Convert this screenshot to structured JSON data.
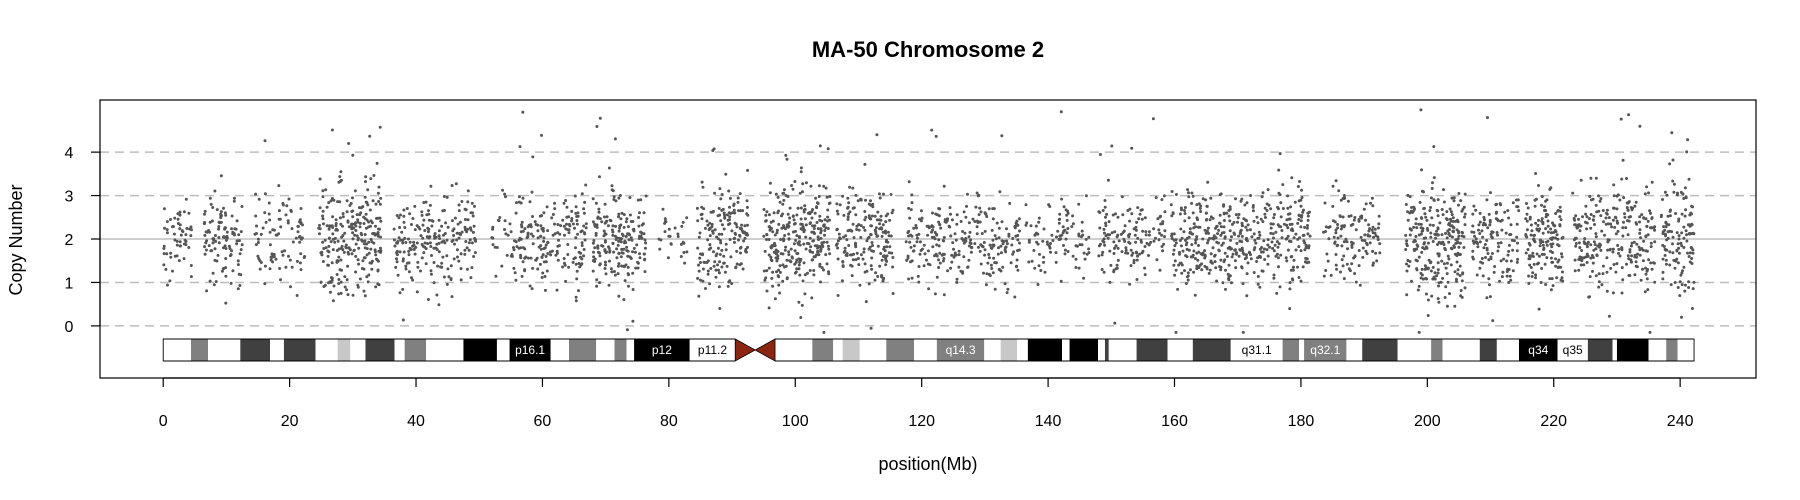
{
  "chart_data": {
    "type": "scatter",
    "title": "MA-50  Chromosome 2",
    "xlabel": "position(Mb)",
    "ylabel": "Copy Number",
    "xlim": [
      -10,
      252
    ],
    "ylim": [
      -1.2,
      5.2
    ],
    "xticks": [
      0,
      20,
      40,
      60,
      80,
      100,
      120,
      140,
      160,
      180,
      200,
      220,
      240
    ],
    "yticks": [
      0,
      1,
      2,
      3,
      4
    ],
    "reference_line": 2,
    "dashed_lines": [
      0,
      1,
      3,
      4
    ],
    "grid": false,
    "point_color": "#555555",
    "ideogram": {
      "start": 0,
      "end": 242.2,
      "centromere": [
        90.5,
        96.8
      ],
      "centromere_color": "#8b2510",
      "bands": [
        {
          "start": 0.0,
          "end": 4.4,
          "stain": "gneg"
        },
        {
          "start": 4.4,
          "end": 7.1,
          "stain": "gpos50"
        },
        {
          "start": 7.1,
          "end": 12.2,
          "stain": "gneg"
        },
        {
          "start": 12.2,
          "end": 16.9,
          "stain": "gpos75"
        },
        {
          "start": 16.9,
          "end": 19.1,
          "stain": "gneg"
        },
        {
          "start": 19.1,
          "end": 24.1,
          "stain": "gpos75"
        },
        {
          "start": 24.1,
          "end": 27.6,
          "stain": "gneg"
        },
        {
          "start": 27.6,
          "end": 29.6,
          "stain": "gpos25"
        },
        {
          "start": 29.6,
          "end": 32.0,
          "stain": "gneg"
        },
        {
          "start": 32.0,
          "end": 36.6,
          "stain": "gpos75"
        },
        {
          "start": 36.6,
          "end": 38.2,
          "stain": "gneg"
        },
        {
          "start": 38.2,
          "end": 41.6,
          "stain": "gpos50"
        },
        {
          "start": 41.6,
          "end": 47.5,
          "stain": "gneg"
        },
        {
          "start": 47.5,
          "end": 52.8,
          "stain": "gpos100"
        },
        {
          "start": 52.8,
          "end": 54.8,
          "stain": "gneg"
        },
        {
          "start": 54.8,
          "end": 61.3,
          "stain": "gpos100",
          "label": "p16.1"
        },
        {
          "start": 61.3,
          "end": 64.2,
          "stain": "gneg"
        },
        {
          "start": 64.2,
          "end": 68.5,
          "stain": "gpos50"
        },
        {
          "start": 68.5,
          "end": 71.4,
          "stain": "gneg"
        },
        {
          "start": 71.4,
          "end": 73.3,
          "stain": "gpos50"
        },
        {
          "start": 73.3,
          "end": 74.5,
          "stain": "gneg"
        },
        {
          "start": 74.5,
          "end": 83.3,
          "stain": "gpos100",
          "label": "p12"
        },
        {
          "start": 83.3,
          "end": 90.5,
          "stain": "gneg",
          "label": "p11.2"
        },
        {
          "start": 96.8,
          "end": 102.7,
          "stain": "gneg"
        },
        {
          "start": 102.7,
          "end": 106.0,
          "stain": "gpos50"
        },
        {
          "start": 106.0,
          "end": 107.5,
          "stain": "gneg"
        },
        {
          "start": 107.5,
          "end": 110.2,
          "stain": "gpos25"
        },
        {
          "start": 110.2,
          "end": 114.4,
          "stain": "gneg"
        },
        {
          "start": 114.4,
          "end": 118.8,
          "stain": "gpos50"
        },
        {
          "start": 118.8,
          "end": 122.4,
          "stain": "gneg"
        },
        {
          "start": 122.4,
          "end": 129.9,
          "stain": "gpos50",
          "label": "q14.3"
        },
        {
          "start": 129.9,
          "end": 132.5,
          "stain": "gneg"
        },
        {
          "start": 132.5,
          "end": 135.1,
          "stain": "gpos25"
        },
        {
          "start": 135.1,
          "end": 136.8,
          "stain": "gneg"
        },
        {
          "start": 136.8,
          "end": 142.2,
          "stain": "gpos100"
        },
        {
          "start": 142.2,
          "end": 143.4,
          "stain": "gneg"
        },
        {
          "start": 143.4,
          "end": 147.9,
          "stain": "gpos100"
        },
        {
          "start": 147.9,
          "end": 149.0,
          "stain": "gneg"
        },
        {
          "start": 149.0,
          "end": 149.6,
          "stain": "gpos75"
        },
        {
          "start": 149.6,
          "end": 154.0,
          "stain": "gneg"
        },
        {
          "start": 154.0,
          "end": 158.9,
          "stain": "gpos75"
        },
        {
          "start": 158.9,
          "end": 162.9,
          "stain": "gneg"
        },
        {
          "start": 162.9,
          "end": 168.9,
          "stain": "gpos75"
        },
        {
          "start": 168.9,
          "end": 177.1,
          "stain": "gneg",
          "label": "q31.1"
        },
        {
          "start": 177.1,
          "end": 179.7,
          "stain": "gpos50"
        },
        {
          "start": 179.7,
          "end": 180.5,
          "stain": "gneg"
        },
        {
          "start": 180.5,
          "end": 187.2,
          "stain": "gpos50",
          "label": "q32.1"
        },
        {
          "start": 187.2,
          "end": 189.7,
          "stain": "gneg"
        },
        {
          "start": 189.7,
          "end": 195.3,
          "stain": "gpos75"
        },
        {
          "start": 195.3,
          "end": 200.6,
          "stain": "gneg"
        },
        {
          "start": 200.6,
          "end": 202.4,
          "stain": "gpos50"
        },
        {
          "start": 202.4,
          "end": 208.3,
          "stain": "gneg"
        },
        {
          "start": 208.3,
          "end": 211.0,
          "stain": "gpos75"
        },
        {
          "start": 211.0,
          "end": 214.5,
          "stain": "gneg"
        },
        {
          "start": 214.5,
          "end": 220.6,
          "stain": "gpos100",
          "label": "q34"
        },
        {
          "start": 220.6,
          "end": 225.4,
          "stain": "gneg",
          "label": "q35"
        },
        {
          "start": 225.4,
          "end": 229.3,
          "stain": "gpos75"
        },
        {
          "start": 229.3,
          "end": 230.0,
          "stain": "gneg"
        },
        {
          "start": 230.0,
          "end": 235.0,
          "stain": "gpos100"
        },
        {
          "start": 235.0,
          "end": 237.8,
          "stain": "gneg"
        },
        {
          "start": 237.8,
          "end": 239.6,
          "stain": "gpos50"
        },
        {
          "start": 239.6,
          "end": 242.2,
          "stain": "gneg"
        }
      ]
    },
    "series": [
      {
        "points_per_mb": 14,
        "default_copy_number": 2,
        "segments": [
          {
            "start": 0.0,
            "end": 4.5,
            "density": 0.9
          },
          {
            "start": 6.5,
            "end": 12.5,
            "density": 1.3
          },
          {
            "start": 14.5,
            "end": 22.5,
            "density": 0.8
          },
          {
            "start": 24.5,
            "end": 34.5,
            "density": 1.9
          },
          {
            "start": 36.5,
            "end": 49.5,
            "density": 1.2
          },
          {
            "start": 52.0,
            "end": 55.0,
            "density": 0.5
          },
          {
            "start": 55.0,
            "end": 67.0,
            "density": 1.2
          },
          {
            "start": 68.0,
            "end": 76.5,
            "density": 1.7
          },
          {
            "start": 78.0,
            "end": 83.0,
            "density": 0.4
          },
          {
            "start": 84.5,
            "end": 92.5,
            "density": 1.6
          },
          {
            "start": 95.0,
            "end": 105.5,
            "density": 2.0
          },
          {
            "start": 106.5,
            "end": 115.5,
            "density": 1.5
          },
          {
            "start": 117.5,
            "end": 135.5,
            "density": 1.1
          },
          {
            "start": 136.5,
            "end": 146.5,
            "density": 0.7
          },
          {
            "start": 148.0,
            "end": 158.5,
            "density": 1.0
          },
          {
            "start": 159.5,
            "end": 181.5,
            "density": 1.5
          },
          {
            "start": 183.5,
            "end": 192.5,
            "density": 1.0
          },
          {
            "start": 196.5,
            "end": 206.0,
            "density": 2.0
          },
          {
            "start": 207.0,
            "end": 214.5,
            "density": 1.2
          },
          {
            "start": 215.5,
            "end": 221.5,
            "density": 1.8
          },
          {
            "start": 223.0,
            "end": 236.0,
            "density": 1.5
          },
          {
            "start": 237.0,
            "end": 242.2,
            "density": 1.8
          }
        ]
      }
    ]
  }
}
